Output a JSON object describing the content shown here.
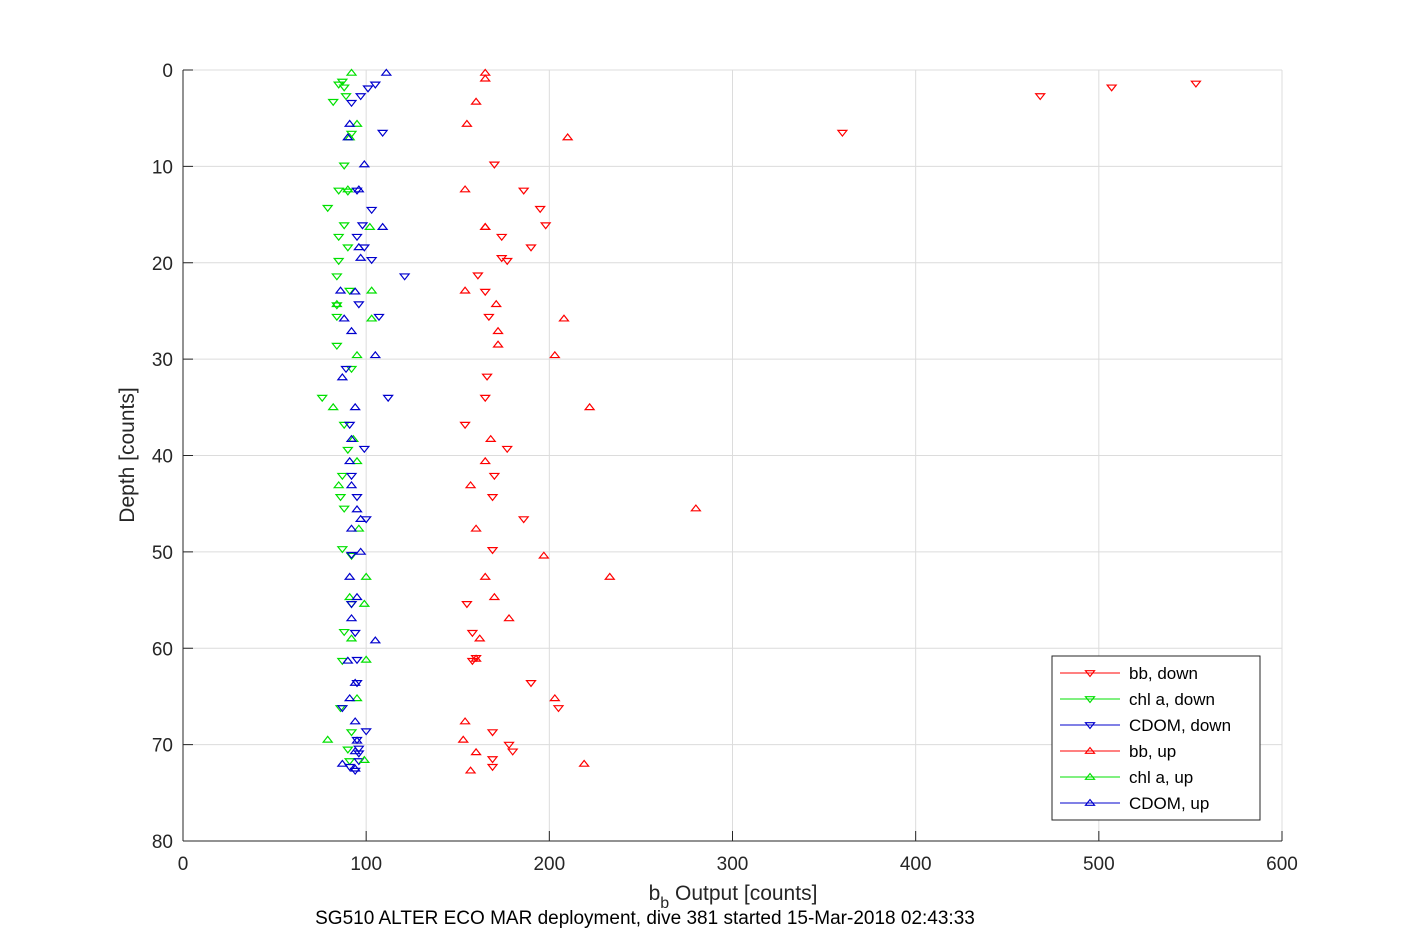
{
  "chart_data": {
    "type": "scatter",
    "xlabel_main": "b",
    "xlabel_sub": "b",
    "xlabel_rest": " Output [counts]",
    "ylabel": "Depth [counts]",
    "caption": "SG510 ALTER ECO MAR deployment, dive 381 started 15-Mar-2018 02:43:33",
    "xlim": [
      0,
      600
    ],
    "ylim": [
      0,
      80
    ],
    "y_reversed": true,
    "xticks": [
      0,
      100,
      200,
      300,
      400,
      500,
      600
    ],
    "yticks": [
      0,
      10,
      20,
      30,
      40,
      50,
      60,
      70,
      80
    ],
    "grid": true,
    "legend_position": "bottom-right",
    "series": [
      {
        "name": "bb, down",
        "color": "#ff0000",
        "marker": "down",
        "points": [
          [
            553,
            1.4
          ],
          [
            507,
            1.8
          ],
          [
            468,
            2.7
          ],
          [
            360,
            6.5
          ],
          [
            170,
            9.8
          ],
          [
            186,
            12.5
          ],
          [
            195,
            14.4
          ],
          [
            198,
            16.1
          ],
          [
            174,
            17.3
          ],
          [
            190,
            18.4
          ],
          [
            174,
            19.5
          ],
          [
            177,
            19.8
          ],
          [
            161,
            21.3
          ],
          [
            165,
            23.0
          ],
          [
            167,
            25.6
          ],
          [
            166,
            31.8
          ],
          [
            165,
            34.0
          ],
          [
            154,
            36.8
          ],
          [
            177,
            39.3
          ],
          [
            170,
            42.1
          ],
          [
            169,
            44.3
          ],
          [
            186,
            46.6
          ],
          [
            169,
            49.8
          ],
          [
            155,
            55.4
          ],
          [
            158,
            58.4
          ],
          [
            158,
            61.3
          ],
          [
            160,
            61.0
          ],
          [
            190,
            63.6
          ],
          [
            205,
            66.2
          ],
          [
            169,
            68.7
          ],
          [
            178,
            70.0
          ],
          [
            180,
            70.7
          ],
          [
            169,
            71.5
          ],
          [
            169,
            72.3
          ]
        ]
      },
      {
        "name": "chl a, down",
        "color": "#00e000",
        "marker": "down",
        "points": [
          [
            85,
            1.5
          ],
          [
            87,
            1.2
          ],
          [
            88,
            1.8
          ],
          [
            82,
            3.3
          ],
          [
            89,
            2.7
          ],
          [
            92,
            6.6
          ],
          [
            88,
            9.9
          ],
          [
            85,
            12.5
          ],
          [
            90,
            12.6
          ],
          [
            79,
            14.3
          ],
          [
            88,
            16.1
          ],
          [
            85,
            17.3
          ],
          [
            90,
            18.4
          ],
          [
            85,
            19.8
          ],
          [
            84,
            21.4
          ],
          [
            91,
            22.9
          ],
          [
            84,
            24.4
          ],
          [
            84,
            25.6
          ],
          [
            84,
            28.6
          ],
          [
            92,
            31.0
          ],
          [
            76,
            34.0
          ],
          [
            88,
            36.8
          ],
          [
            90,
            39.4
          ],
          [
            87,
            42.1
          ],
          [
            86,
            44.3
          ],
          [
            88,
            45.5
          ],
          [
            87,
            49.7
          ],
          [
            92,
            50.4
          ],
          [
            92,
            55.4
          ],
          [
            88,
            58.3
          ],
          [
            87,
            61.3
          ],
          [
            86,
            66.2
          ],
          [
            92,
            68.7
          ],
          [
            90,
            70.5
          ],
          [
            91,
            71.7
          ]
        ]
      },
      {
        "name": "CDOM, down",
        "color": "#0000cd",
        "marker": "down",
        "points": [
          [
            105,
            1.5
          ],
          [
            101,
            1.9
          ],
          [
            97,
            2.7
          ],
          [
            92,
            3.4
          ],
          [
            109,
            6.5
          ],
          [
            95,
            12.5
          ],
          [
            103,
            14.5
          ],
          [
            98,
            16.1
          ],
          [
            95,
            17.3
          ],
          [
            99,
            18.4
          ],
          [
            103,
            19.7
          ],
          [
            121,
            21.4
          ],
          [
            96,
            24.3
          ],
          [
            107,
            25.6
          ],
          [
            89,
            31.0
          ],
          [
            112,
            34.0
          ],
          [
            91,
            36.8
          ],
          [
            99,
            39.3
          ],
          [
            92,
            42.1
          ],
          [
            95,
            44.3
          ],
          [
            100,
            46.6
          ],
          [
            92,
            50.3
          ],
          [
            92,
            55.4
          ],
          [
            94,
            58.4
          ],
          [
            95,
            61.2
          ],
          [
            95,
            63.6
          ],
          [
            87,
            66.2
          ],
          [
            100,
            68.6
          ],
          [
            95,
            69.5
          ],
          [
            96,
            70.4
          ],
          [
            96,
            70.9
          ],
          [
            96,
            71.7
          ],
          [
            91,
            72.3
          ],
          [
            94,
            72.7
          ]
        ]
      },
      {
        "name": "bb, up",
        "color": "#ff0000",
        "marker": "up",
        "points": [
          [
            165,
            0.3
          ],
          [
            165,
            0.9
          ],
          [
            160,
            3.3
          ],
          [
            155,
            5.6
          ],
          [
            210,
            7.0
          ],
          [
            154,
            12.4
          ],
          [
            165,
            16.3
          ],
          [
            165,
            16.3
          ],
          [
            154,
            22.9
          ],
          [
            171,
            24.3
          ],
          [
            208,
            25.8
          ],
          [
            172,
            27.1
          ],
          [
            172,
            28.5
          ],
          [
            203,
            29.6
          ],
          [
            222,
            35.0
          ],
          [
            168,
            38.3
          ],
          [
            165,
            40.6
          ],
          [
            157,
            43.1
          ],
          [
            280,
            45.5
          ],
          [
            160,
            47.6
          ],
          [
            197,
            50.4
          ],
          [
            233,
            52.6
          ],
          [
            165,
            52.6
          ],
          [
            170,
            54.7
          ],
          [
            178,
            56.9
          ],
          [
            162,
            59.0
          ],
          [
            160,
            61.1
          ],
          [
            203,
            65.2
          ],
          [
            154,
            67.6
          ],
          [
            153,
            69.5
          ],
          [
            160,
            70.8
          ],
          [
            219,
            72.0
          ],
          [
            157,
            72.7
          ]
        ]
      },
      {
        "name": "chl a, up",
        "color": "#00e000",
        "marker": "up",
        "points": [
          [
            92,
            0.3
          ],
          [
            95,
            5.6
          ],
          [
            91,
            7.0
          ],
          [
            90,
            12.4
          ],
          [
            102,
            16.3
          ],
          [
            103,
            22.9
          ],
          [
            84,
            24.3
          ],
          [
            103,
            25.8
          ],
          [
            95,
            29.6
          ],
          [
            82,
            35.0
          ],
          [
            93,
            38.3
          ],
          [
            95,
            40.6
          ],
          [
            85,
            43.1
          ],
          [
            96,
            47.6
          ],
          [
            100,
            52.6
          ],
          [
            91,
            54.7
          ],
          [
            99,
            55.4
          ],
          [
            92,
            59.0
          ],
          [
            100,
            61.2
          ],
          [
            95,
            65.2
          ],
          [
            79,
            69.5
          ],
          [
            99,
            71.6
          ]
        ]
      },
      {
        "name": "CDOM, up",
        "color": "#0000cd",
        "marker": "up",
        "points": [
          [
            111,
            0.3
          ],
          [
            91,
            5.6
          ],
          [
            90,
            7.0
          ],
          [
            99,
            9.8
          ],
          [
            96,
            12.4
          ],
          [
            109,
            16.3
          ],
          [
            96,
            18.4
          ],
          [
            97,
            19.5
          ],
          [
            86,
            22.9
          ],
          [
            94,
            23.0
          ],
          [
            88,
            25.8
          ],
          [
            92,
            27.1
          ],
          [
            105,
            29.6
          ],
          [
            87,
            31.9
          ],
          [
            94,
            35.0
          ],
          [
            92,
            38.3
          ],
          [
            91,
            40.6
          ],
          [
            92,
            43.1
          ],
          [
            95,
            45.6
          ],
          [
            97,
            46.6
          ],
          [
            92,
            47.6
          ],
          [
            97,
            50.0
          ],
          [
            91,
            52.6
          ],
          [
            95,
            54.7
          ],
          [
            92,
            56.9
          ],
          [
            105,
            59.2
          ],
          [
            90,
            61.3
          ],
          [
            94,
            63.6
          ],
          [
            91,
            65.2
          ],
          [
            94,
            67.6
          ],
          [
            95,
            69.6
          ],
          [
            94,
            70.7
          ],
          [
            87,
            72.0
          ],
          [
            94,
            72.5
          ]
        ]
      }
    ]
  }
}
